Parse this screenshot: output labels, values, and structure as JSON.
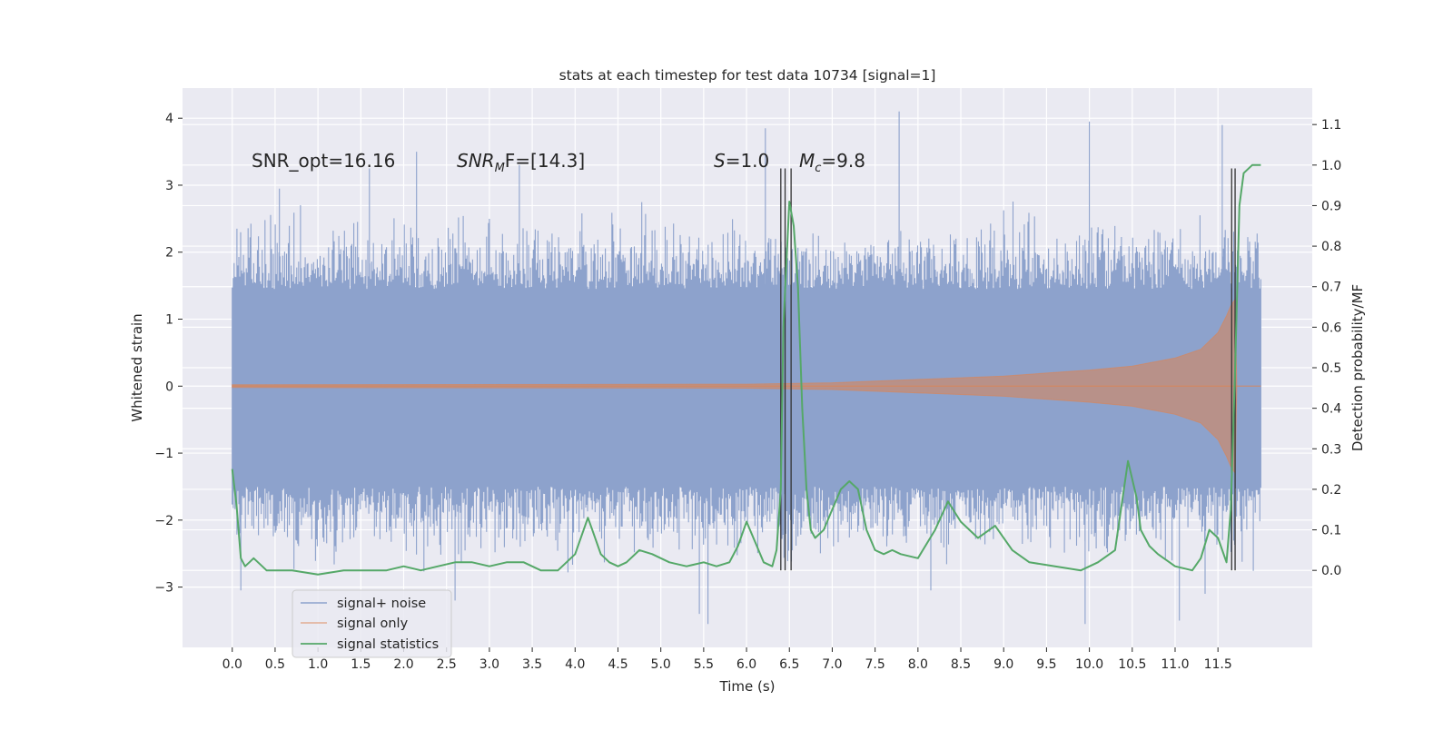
{
  "chart_data": {
    "type": "line",
    "title": "stats at each timestep for test data 10734 [signal=1]",
    "xlabel": "Time (s)",
    "ylabel": "Whitened strain",
    "ylabel_right": "Detection probability/MF",
    "xlim": [
      -0.58,
      12.6
    ],
    "ylim": [
      -3.9,
      4.45
    ],
    "ylim_right": [
      -0.19,
      1.19
    ],
    "x_ticks": [
      "0.0",
      "0.5",
      "1.0",
      "1.5",
      "2.0",
      "2.5",
      "3.0",
      "3.5",
      "4.0",
      "4.5",
      "5.0",
      "5.5",
      "6.0",
      "6.5",
      "7.0",
      "7.5",
      "8.0",
      "8.5",
      "9.0",
      "9.5",
      "10.0",
      "10.5",
      "11.0",
      "11.5"
    ],
    "x_tick_values": [
      0,
      0.5,
      1,
      1.5,
      2,
      2.5,
      3,
      3.5,
      4,
      4.5,
      5,
      5.5,
      6,
      6.5,
      7,
      7.5,
      8,
      8.5,
      9,
      9.5,
      10,
      10.5,
      11,
      11.5
    ],
    "y_ticks": [
      "4",
      "3",
      "2",
      "1",
      "0",
      "−1",
      "−2",
      "−3"
    ],
    "y_tick_values": [
      4,
      3,
      2,
      1,
      0,
      -1,
      -2,
      -3
    ],
    "y_right_ticks": [
      "1.1",
      "1.0",
      "0.9",
      "0.8",
      "0.7",
      "0.6",
      "0.5",
      "0.4",
      "0.3",
      "0.2",
      "0.1",
      "0.0"
    ],
    "y_right_tick_values": [
      1.1,
      1.0,
      0.9,
      0.8,
      0.7,
      0.6,
      0.5,
      0.4,
      0.3,
      0.2,
      0.1,
      0.0
    ],
    "grid": true,
    "legend_position": "lower-left",
    "annotations": {
      "snr_opt": "SNR_opt=16.16",
      "snr_mf_main": "SNR",
      "snr_mf_sub": "M",
      "snr_mf_rest": "F=[14.3]",
      "s_main": "S",
      "s_rest": "=1.0",
      "mc_main": "M",
      "mc_sub": "c",
      "mc_rest": "=9.8"
    },
    "series": [
      {
        "name": "signal+ noise",
        "axis": "left",
        "color": "#8da2cc",
        "x_range": [
          0.0,
          12.0
        ],
        "core_band": [
          -1.5,
          1.45
        ],
        "spike_extremes": [
          [
            0.55,
            2.95
          ],
          [
            1.6,
            3.25
          ],
          [
            2.15,
            3.5
          ],
          [
            3.35,
            3.3
          ],
          [
            6.22,
            3.85
          ],
          [
            7.78,
            4.1
          ],
          [
            10.0,
            3.95
          ],
          [
            11.55,
            3.9
          ],
          [
            0.1,
            -3.05
          ],
          [
            2.6,
            -3.2
          ],
          [
            5.45,
            -3.4
          ],
          [
            5.55,
            -3.55
          ],
          [
            8.15,
            -3.05
          ],
          [
            9.95,
            -3.55
          ],
          [
            11.05,
            -3.5
          ],
          [
            11.35,
            -3.1
          ]
        ]
      },
      {
        "name": "signal only",
        "axis": "left",
        "color": "#dd8452",
        "x_range": [
          0.0,
          12.0
        ],
        "envelope": [
          [
            0.0,
            0.02
          ],
          [
            6.0,
            0.03
          ],
          [
            7.0,
            0.05
          ],
          [
            8.0,
            0.1
          ],
          [
            9.0,
            0.15
          ],
          [
            10.0,
            0.24
          ],
          [
            10.5,
            0.3
          ],
          [
            11.0,
            0.42
          ],
          [
            11.3,
            0.55
          ],
          [
            11.5,
            0.8
          ],
          [
            11.6,
            1.05
          ],
          [
            11.65,
            1.2
          ],
          [
            11.7,
            1.3
          ],
          [
            11.72,
            0.0
          ]
        ]
      },
      {
        "name": "signal statistics",
        "axis": "right",
        "color": "#55a868",
        "x": [
          0.0,
          0.05,
          0.1,
          0.15,
          0.2,
          0.25,
          0.3,
          0.35,
          0.4,
          0.5,
          0.7,
          1.0,
          1.3,
          1.5,
          1.8,
          2.0,
          2.2,
          2.4,
          2.6,
          2.8,
          3.0,
          3.2,
          3.4,
          3.6,
          3.8,
          4.0,
          4.1,
          4.15,
          4.2,
          4.3,
          4.4,
          4.5,
          4.6,
          4.75,
          4.9,
          5.1,
          5.3,
          5.5,
          5.65,
          5.8,
          5.9,
          6.0,
          6.1,
          6.2,
          6.3,
          6.35,
          6.4,
          6.43,
          6.5,
          6.55,
          6.6,
          6.65,
          6.7,
          6.75,
          6.8,
          6.9,
          7.0,
          7.1,
          7.2,
          7.3,
          7.4,
          7.5,
          7.6,
          7.7,
          7.8,
          8.0,
          8.2,
          8.35,
          8.5,
          8.7,
          8.9,
          9.1,
          9.3,
          9.6,
          9.9,
          10.1,
          10.3,
          10.45,
          10.55,
          10.6,
          10.7,
          10.8,
          11.0,
          11.2,
          11.3,
          11.4,
          11.5,
          11.6,
          11.65,
          11.7,
          11.75,
          11.8,
          11.9,
          12.0
        ],
        "y": [
          0.25,
          0.16,
          0.03,
          0.01,
          0.02,
          0.03,
          0.02,
          0.01,
          0.0,
          0.0,
          0.0,
          -0.01,
          0.0,
          0.0,
          0.0,
          0.01,
          0.0,
          0.01,
          0.02,
          0.02,
          0.01,
          0.02,
          0.02,
          0.0,
          0.0,
          0.04,
          0.1,
          0.13,
          0.1,
          0.04,
          0.02,
          0.01,
          0.02,
          0.05,
          0.04,
          0.02,
          0.01,
          0.02,
          0.01,
          0.02,
          0.06,
          0.12,
          0.07,
          0.02,
          0.01,
          0.05,
          0.2,
          0.6,
          0.91,
          0.85,
          0.7,
          0.4,
          0.2,
          0.1,
          0.08,
          0.1,
          0.15,
          0.2,
          0.22,
          0.2,
          0.1,
          0.05,
          0.04,
          0.05,
          0.04,
          0.03,
          0.1,
          0.17,
          0.12,
          0.08,
          0.11,
          0.05,
          0.02,
          0.01,
          0.0,
          0.02,
          0.05,
          0.27,
          0.18,
          0.1,
          0.06,
          0.04,
          0.01,
          0.0,
          0.03,
          0.1,
          0.08,
          0.02,
          0.15,
          0.5,
          0.9,
          0.98,
          1.0,
          1.0
        ]
      }
    ],
    "vertical_lines": [
      6.4,
      6.45,
      6.52,
      11.66,
      11.7
    ],
    "vertical_line_range": [
      -2.75,
      3.25
    ],
    "colors": {
      "background": "#eaeaf2",
      "grid": "#ffffff",
      "vline": "#333333"
    }
  }
}
